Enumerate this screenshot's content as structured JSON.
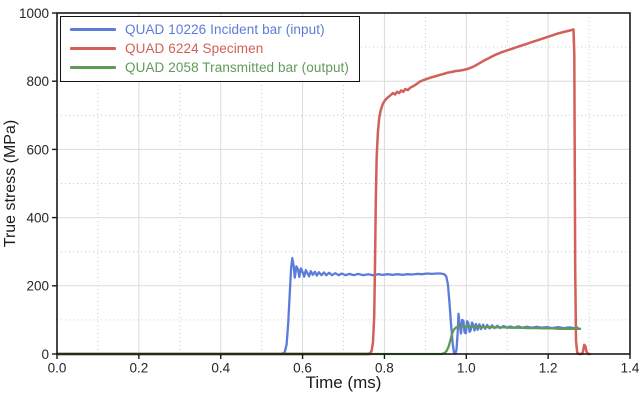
{
  "chart_data": {
    "type": "line",
    "title": "",
    "xlabel": "Time (ms)",
    "ylabel": "True stress (MPa)",
    "xlim": [
      0,
      1.4
    ],
    "ylim": [
      0,
      1000
    ],
    "grid": {
      "major_on": true,
      "minor_on": true,
      "major_color": "#dcdcdc",
      "minor_color": "#c9c9c9",
      "minor_style": "dotted"
    },
    "frame_color": "#1a1a1a",
    "tick_text_color": "#262626",
    "background": "#ffffff",
    "legend_position": "top-left",
    "x_ticks": {
      "values": [
        0,
        0.2,
        0.4,
        0.6,
        0.8,
        1.0,
        1.2,
        1.4
      ],
      "labels": [
        "0.0",
        "0.2",
        "0.4",
        "0.6",
        "0.8",
        "1.0",
        "1.2",
        "1.4"
      ]
    },
    "y_ticks": {
      "values": [
        0,
        200,
        400,
        600,
        800,
        1000
      ],
      "labels": [
        "0",
        "200",
        "400",
        "600",
        "800",
        "1000"
      ]
    },
    "x_minor": [
      0.1,
      0.3,
      0.5,
      0.7,
      0.9,
      1.1,
      1.3
    ],
    "y_minor": [
      100,
      300,
      500,
      700,
      900
    ],
    "zero_overlap": {
      "color": "#5e6c2e",
      "from": 0,
      "to": 0.765,
      "width": 2.4
    },
    "series": [
      {
        "name": "QUAD 10226 Incident bar (input)",
        "color": "#5b7cd9",
        "width": 2.3,
        "points": [
          [
            0,
            0
          ],
          [
            0.548,
            0
          ],
          [
            0.556,
            4
          ],
          [
            0.561,
            28
          ],
          [
            0.565,
            90
          ],
          [
            0.569,
            185
          ],
          [
            0.572,
            252
          ],
          [
            0.575,
            281
          ],
          [
            0.578,
            260
          ],
          [
            0.581,
            224
          ],
          [
            0.585,
            257
          ],
          [
            0.589,
            247
          ],
          [
            0.592,
            226
          ],
          [
            0.596,
            251
          ],
          [
            0.6,
            240
          ],
          [
            0.604,
            227
          ],
          [
            0.608,
            246
          ],
          [
            0.612,
            237
          ],
          [
            0.616,
            228
          ],
          [
            0.62,
            243
          ],
          [
            0.625,
            232
          ],
          [
            0.63,
            241
          ],
          [
            0.635,
            230
          ],
          [
            0.64,
            240
          ],
          [
            0.646,
            231
          ],
          [
            0.652,
            239
          ],
          [
            0.658,
            231
          ],
          [
            0.665,
            238
          ],
          [
            0.672,
            231
          ],
          [
            0.68,
            237
          ],
          [
            0.688,
            231
          ],
          [
            0.696,
            236
          ],
          [
            0.705,
            231
          ],
          [
            0.715,
            235
          ],
          [
            0.725,
            231
          ],
          [
            0.736,
            235
          ],
          [
            0.748,
            231
          ],
          [
            0.76,
            234
          ],
          [
            0.772,
            231
          ],
          [
            0.784,
            234
          ],
          [
            0.796,
            232
          ],
          [
            0.808,
            234
          ],
          [
            0.82,
            232
          ],
          [
            0.832,
            234
          ],
          [
            0.844,
            232
          ],
          [
            0.856,
            234
          ],
          [
            0.868,
            233
          ],
          [
            0.88,
            235
          ],
          [
            0.892,
            234
          ],
          [
            0.904,
            236
          ],
          [
            0.916,
            235
          ],
          [
            0.928,
            236
          ],
          [
            0.938,
            236
          ],
          [
            0.946,
            234
          ],
          [
            0.951,
            228
          ],
          [
            0.955,
            205
          ],
          [
            0.959,
            150
          ],
          [
            0.963,
            85
          ],
          [
            0.967,
            28
          ],
          [
            0.97,
            5
          ],
          [
            0.973,
            1
          ],
          [
            0.976,
            12
          ],
          [
            0.979,
            65
          ],
          [
            0.981,
            118
          ],
          [
            0.984,
            86
          ],
          [
            0.987,
            60
          ],
          [
            0.99,
            100
          ],
          [
            0.993,
            97
          ],
          [
            0.996,
            63
          ],
          [
            0.999,
            61
          ],
          [
            1.002,
            96
          ],
          [
            1.005,
            92
          ],
          [
            1.008,
            65
          ],
          [
            1.011,
            70
          ],
          [
            1.014,
            92
          ],
          [
            1.017,
            87
          ],
          [
            1.02,
            69
          ],
          [
            1.024,
            88
          ],
          [
            1.028,
            71
          ],
          [
            1.032,
            87
          ],
          [
            1.036,
            73
          ],
          [
            1.041,
            86
          ],
          [
            1.046,
            74
          ],
          [
            1.051,
            85
          ],
          [
            1.057,
            75
          ],
          [
            1.063,
            84
          ],
          [
            1.069,
            76
          ],
          [
            1.076,
            83
          ],
          [
            1.083,
            76
          ],
          [
            1.091,
            82
          ],
          [
            1.099,
            77
          ],
          [
            1.108,
            81
          ],
          [
            1.117,
            77
          ],
          [
            1.127,
            81
          ],
          [
            1.137,
            77
          ],
          [
            1.148,
            80
          ],
          [
            1.16,
            77
          ],
          [
            1.172,
            80
          ],
          [
            1.184,
            77
          ],
          [
            1.197,
            79
          ],
          [
            1.21,
            76
          ],
          [
            1.224,
            79
          ],
          [
            1.238,
            76
          ],
          [
            1.252,
            78
          ],
          [
            1.264,
            76
          ],
          [
            1.272,
            77
          ]
        ]
      },
      {
        "name": "QUAD 6224 Specimen",
        "color": "#d35f58",
        "width": 2.5,
        "points": [
          [
            0,
            0
          ],
          [
            0.758,
            0
          ],
          [
            0.765,
            2
          ],
          [
            0.769,
            10
          ],
          [
            0.772,
            35
          ],
          [
            0.775,
            110
          ],
          [
            0.777,
            260
          ],
          [
            0.779,
            450
          ],
          [
            0.781,
            580
          ],
          [
            0.784,
            650
          ],
          [
            0.787,
            690
          ],
          [
            0.791,
            715
          ],
          [
            0.796,
            733
          ],
          [
            0.802,
            745
          ],
          [
            0.809,
            753
          ],
          [
            0.815,
            759
          ],
          [
            0.821,
            765
          ],
          [
            0.826,
            761
          ],
          [
            0.831,
            769
          ],
          [
            0.836,
            765
          ],
          [
            0.841,
            773
          ],
          [
            0.846,
            769
          ],
          [
            0.851,
            777
          ],
          [
            0.857,
            774
          ],
          [
            0.863,
            781
          ],
          [
            0.871,
            786
          ],
          [
            0.879,
            792
          ],
          [
            0.887,
            799
          ],
          [
            0.895,
            803
          ],
          [
            0.904,
            807
          ],
          [
            0.914,
            811
          ],
          [
            0.924,
            814
          ],
          [
            0.934,
            818
          ],
          [
            0.944,
            821
          ],
          [
            0.954,
            825
          ],
          [
            0.964,
            827
          ],
          [
            0.974,
            830
          ],
          [
            0.984,
            831
          ],
          [
            0.994,
            833
          ],
          [
            1.004,
            836
          ],
          [
            1.014,
            841
          ],
          [
            1.024,
            847
          ],
          [
            1.034,
            854
          ],
          [
            1.044,
            861
          ],
          [
            1.054,
            867
          ],
          [
            1.064,
            873
          ],
          [
            1.074,
            879
          ],
          [
            1.084,
            884
          ],
          [
            1.094,
            888
          ],
          [
            1.104,
            892
          ],
          [
            1.114,
            896
          ],
          [
            1.124,
            900
          ],
          [
            1.134,
            904
          ],
          [
            1.144,
            908
          ],
          [
            1.154,
            912
          ],
          [
            1.164,
            916
          ],
          [
            1.174,
            920
          ],
          [
            1.184,
            924
          ],
          [
            1.194,
            928
          ],
          [
            1.204,
            932
          ],
          [
            1.214,
            936
          ],
          [
            1.224,
            940
          ],
          [
            1.234,
            943
          ],
          [
            1.244,
            946
          ],
          [
            1.254,
            949
          ],
          [
            1.262,
            952
          ],
          [
            1.264,
            880
          ],
          [
            1.265,
            600
          ],
          [
            1.266,
            250
          ],
          [
            1.268,
            40
          ],
          [
            1.271,
            4
          ],
          [
            1.276,
            0
          ],
          [
            1.282,
            0
          ],
          [
            1.285,
            6
          ],
          [
            1.288,
            27
          ],
          [
            1.291,
            23
          ],
          [
            1.294,
            6
          ],
          [
            1.298,
            0
          ],
          [
            1.302,
            0
          ]
        ]
      },
      {
        "name": "QUAD 2058 Transmitted bar (output)",
        "color": "#5f9b57",
        "width": 2.3,
        "points": [
          [
            0,
            0
          ],
          [
            0.94,
            0
          ],
          [
            0.947,
            3
          ],
          [
            0.952,
            9
          ],
          [
            0.957,
            22
          ],
          [
            0.962,
            44
          ],
          [
            0.966,
            62
          ],
          [
            0.97,
            72
          ],
          [
            0.975,
            78
          ],
          [
            0.981,
            80
          ],
          [
            0.99,
            81
          ],
          [
            1.0,
            81
          ],
          [
            1.015,
            80
          ],
          [
            1.03,
            79
          ],
          [
            1.05,
            79
          ],
          [
            1.07,
            78
          ],
          [
            1.09,
            78
          ],
          [
            1.11,
            77
          ],
          [
            1.13,
            77
          ],
          [
            1.15,
            76
          ],
          [
            1.17,
            76
          ],
          [
            1.19,
            75
          ],
          [
            1.21,
            75
          ],
          [
            1.23,
            74
          ],
          [
            1.25,
            74
          ],
          [
            1.265,
            74
          ],
          [
            1.278,
            74
          ]
        ]
      }
    ]
  }
}
